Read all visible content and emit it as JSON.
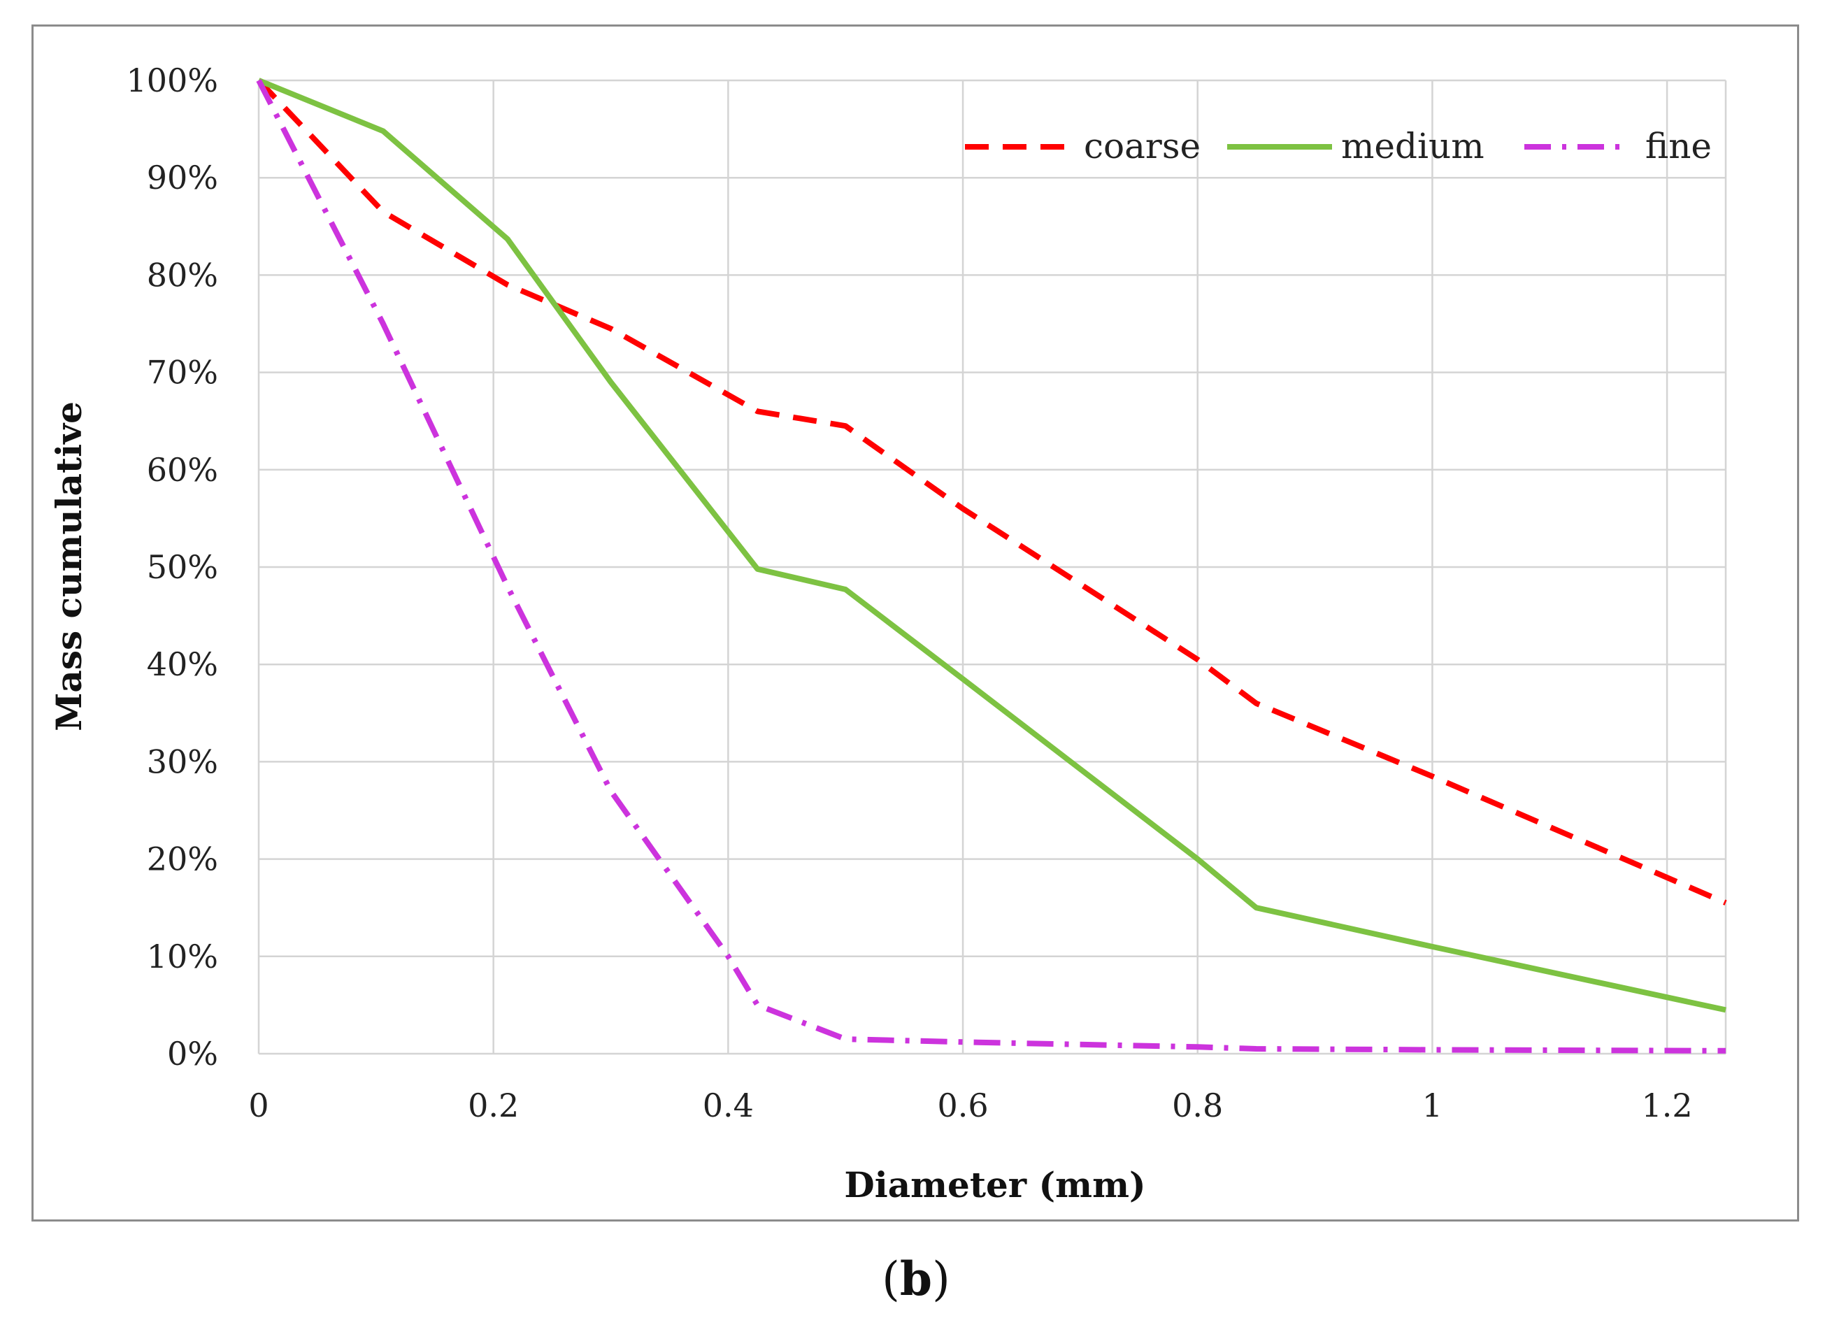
{
  "chart_data": {
    "type": "line",
    "title": "",
    "xlabel": "Diameter (mm)",
    "ylabel": "Mass cumulative",
    "xlim": [
      0,
      1.25
    ],
    "ylim": [
      0,
      1.0
    ],
    "x_ticks": [
      0,
      0.2,
      0.4,
      0.6,
      0.8,
      1.0,
      1.2
    ],
    "x_tick_labels": [
      "0",
      "0.2",
      "0.4",
      "0.6",
      "0.8",
      "1",
      "1.2"
    ],
    "y_ticks": [
      0,
      0.1,
      0.2,
      0.3,
      0.4,
      0.5,
      0.6,
      0.7,
      0.8,
      0.9,
      1.0
    ],
    "y_tick_labels": [
      "0%",
      "10%",
      "20%",
      "30%",
      "40%",
      "50%",
      "60%",
      "70%",
      "80%",
      "90%",
      "100%"
    ],
    "grid": true,
    "legend_position": "top-right",
    "series": [
      {
        "name": "coarse",
        "color": "#ff0000",
        "style": "dashed",
        "x": [
          0,
          0.106,
          0.212,
          0.3,
          0.425,
          0.5,
          0.6,
          0.8,
          0.85,
          1.0,
          1.25
        ],
        "y": [
          1.0,
          0.865,
          0.79,
          0.745,
          0.66,
          0.645,
          0.56,
          0.405,
          0.36,
          0.285,
          0.155
        ]
      },
      {
        "name": "medium",
        "color": "#7dc242",
        "style": "solid",
        "x": [
          0,
          0.106,
          0.212,
          0.3,
          0.425,
          0.5,
          0.6,
          0.8,
          0.85,
          1.0,
          1.25
        ],
        "y": [
          1.0,
          0.948,
          0.837,
          0.69,
          0.498,
          0.477,
          0.385,
          0.2,
          0.15,
          0.11,
          0.045
        ]
      },
      {
        "name": "fine",
        "color": "#cc33dd",
        "style": "dash-dot",
        "x": [
          0,
          0.106,
          0.212,
          0.3,
          0.4,
          0.425,
          0.5,
          0.6,
          0.8,
          0.85,
          1.0,
          1.25
        ],
        "y": [
          1.0,
          0.75,
          0.48,
          0.27,
          0.1,
          0.05,
          0.015,
          0.012,
          0.007,
          0.005,
          0.004,
          0.003
        ]
      }
    ]
  },
  "panel_label": {
    "open": "(",
    "letter": "b",
    "close": ")"
  }
}
